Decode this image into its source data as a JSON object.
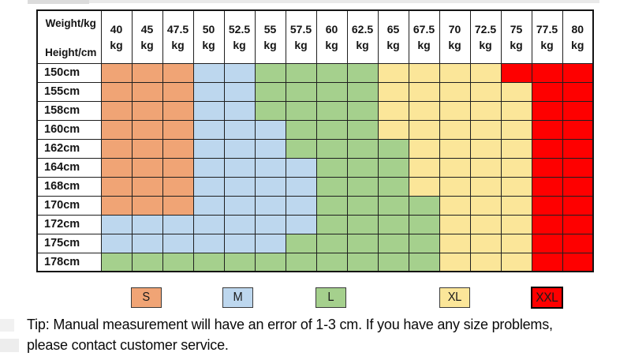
{
  "chart_data": {
    "type": "table",
    "corner_top": "Weight/kg",
    "corner_bottom": "Height/cm",
    "unit_label": "kg",
    "weight_columns_kg": [
      "40",
      "45",
      "47.5",
      "50",
      "52.5",
      "55",
      "57.5",
      "60",
      "62.5",
      "65",
      "67.5",
      "70",
      "72.5",
      "75",
      "77.5",
      "80"
    ],
    "rows": [
      {
        "height": "150cm",
        "sizes": [
          "S",
          "S",
          "S",
          "M",
          "M",
          "L",
          "L",
          "L",
          "L",
          "XL",
          "XL",
          "XL",
          "XL",
          "XXL",
          "XXL",
          "XXL"
        ]
      },
      {
        "height": "155cm",
        "sizes": [
          "S",
          "S",
          "S",
          "M",
          "M",
          "L",
          "L",
          "L",
          "L",
          "XL",
          "XL",
          "XL",
          "XL",
          "XL",
          "XXL",
          "XXL"
        ]
      },
      {
        "height": "158cm",
        "sizes": [
          "S",
          "S",
          "S",
          "M",
          "M",
          "L",
          "L",
          "L",
          "L",
          "XL",
          "XL",
          "XL",
          "XL",
          "XL",
          "XXL",
          "XXL"
        ]
      },
      {
        "height": "160cm",
        "sizes": [
          "S",
          "S",
          "S",
          "M",
          "M",
          "M",
          "L",
          "L",
          "L",
          "XL",
          "XL",
          "XL",
          "XL",
          "XL",
          "XXL",
          "XXL"
        ]
      },
      {
        "height": "162cm",
        "sizes": [
          "S",
          "S",
          "S",
          "M",
          "M",
          "M",
          "L",
          "L",
          "L",
          "L",
          "XL",
          "XL",
          "XL",
          "XL",
          "XXL",
          "XXL"
        ]
      },
      {
        "height": "164cm",
        "sizes": [
          "S",
          "S",
          "S",
          "M",
          "M",
          "M",
          "M",
          "L",
          "L",
          "L",
          "XL",
          "XL",
          "XL",
          "XL",
          "XXL",
          "XXL"
        ]
      },
      {
        "height": "168cm",
        "sizes": [
          "S",
          "S",
          "S",
          "M",
          "M",
          "M",
          "M",
          "L",
          "L",
          "L",
          "XL",
          "XL",
          "XL",
          "XL",
          "XXL",
          "XXL"
        ]
      },
      {
        "height": "170cm",
        "sizes": [
          "S",
          "S",
          "S",
          "M",
          "M",
          "M",
          "M",
          "L",
          "L",
          "L",
          "L",
          "XL",
          "XL",
          "XL",
          "XXL",
          "XXL"
        ]
      },
      {
        "height": "172cm",
        "sizes": [
          "M",
          "M",
          "M",
          "M",
          "M",
          "M",
          "M",
          "L",
          "L",
          "L",
          "L",
          "XL",
          "XL",
          "XL",
          "XXL",
          "XXL"
        ]
      },
      {
        "height": "175cm",
        "sizes": [
          "M",
          "M",
          "M",
          "M",
          "M",
          "M",
          "L",
          "L",
          "L",
          "L",
          "L",
          "XL",
          "XL",
          "XL",
          "XXL",
          "XXL"
        ]
      },
      {
        "height": "178cm",
        "sizes": [
          "L",
          "L",
          "L",
          "L",
          "L",
          "L",
          "L",
          "L",
          "L",
          "L",
          "L",
          "XL",
          "XL",
          "XL",
          "XXL",
          "XXL"
        ]
      }
    ],
    "size_colors": {
      "S": "#F0A475",
      "M": "#BDD7EE",
      "L": "#A5D08D",
      "XL": "#FBE699",
      "XXL": "#FE0000"
    }
  },
  "legend": [
    {
      "label": "S",
      "color": "#F0A475"
    },
    {
      "label": "M",
      "color": "#BDD7EE"
    },
    {
      "label": "L",
      "color": "#A5D08D"
    },
    {
      "label": "XL",
      "color": "#FBE699"
    },
    {
      "label": "XXL",
      "color": "#FE0000"
    }
  ],
  "tip": "Tip: Manual measurement will have an error of 1-3 cm. If you have any size problems, please contact customer service."
}
